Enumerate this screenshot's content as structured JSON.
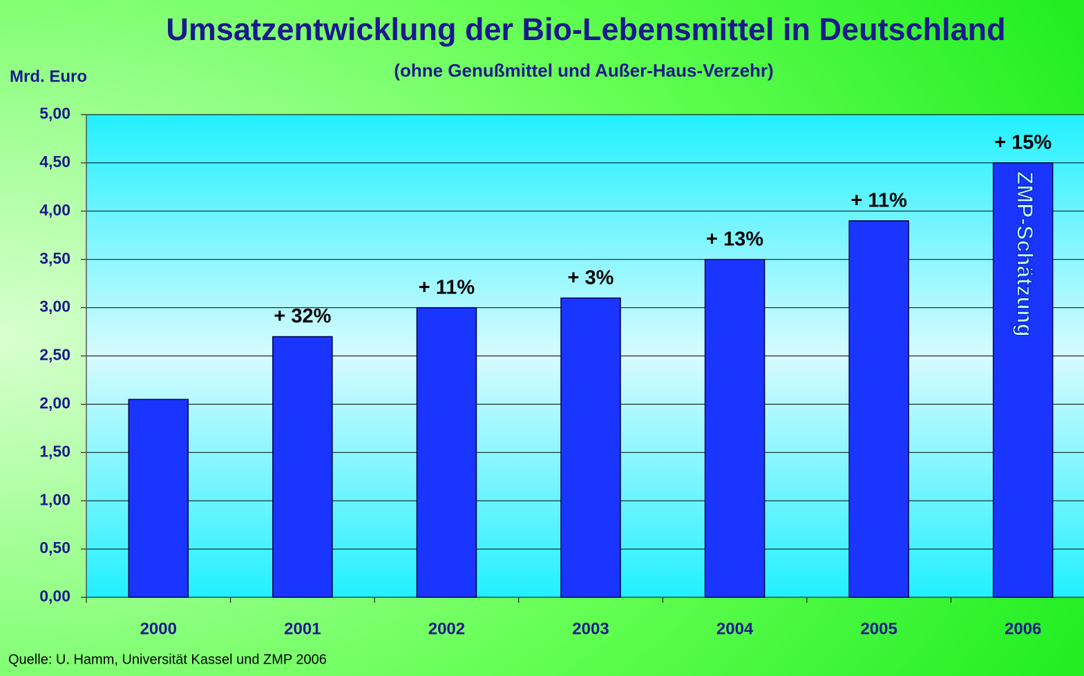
{
  "chart_data": {
    "type": "bar",
    "title": "Umsatzentwicklung der Bio-Lebensmittel in Deutschland",
    "subtitle": "(ohne Genußmittel und Außer-Haus-Verzehr)",
    "y_label": "Mrd. Euro",
    "source": "Quelle: U. Hamm, Universität Kassel und ZMP 2006",
    "categories": [
      "2000",
      "2001",
      "2002",
      "2003",
      "2004",
      "2005",
      "2006"
    ],
    "values": [
      2.05,
      2.7,
      3.0,
      3.1,
      3.5,
      3.9,
      4.5
    ],
    "annotations": [
      null,
      "+ 32%",
      "+ 11%",
      "+ 3%",
      "+ 13%",
      "+ 11%",
      "+ 15%"
    ],
    "bar_note": "ZMP-Schätzung",
    "color": "#1a35ff",
    "ylim": [
      0,
      5
    ],
    "yticks": [
      {
        "value": 0,
        "label": "0,00"
      },
      {
        "value": 0.5,
        "label": "0,50"
      },
      {
        "value": 1,
        "label": "1,00"
      },
      {
        "value": 1.5,
        "label": "1,50"
      },
      {
        "value": 2,
        "label": "2,00"
      },
      {
        "value": 2.5,
        "label": "2,50"
      },
      {
        "value": 3,
        "label": "3,00"
      },
      {
        "value": 3.5,
        "label": "3,50"
      },
      {
        "value": 4,
        "label": "4,00"
      },
      {
        "value": 4.5,
        "label": "4,50"
      },
      {
        "value": 5,
        "label": "5,00"
      }
    ],
    "grid": true
  }
}
